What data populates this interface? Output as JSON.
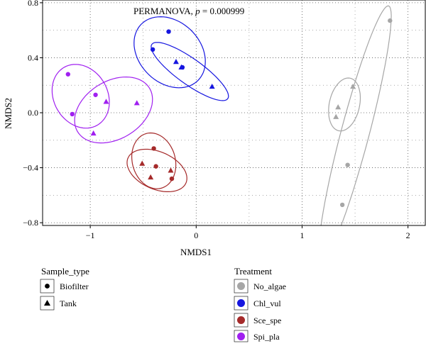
{
  "chart_data": {
    "type": "scatter",
    "title": "",
    "annotation": {
      "prefix": "PERMANOVA, ",
      "p_symbol": "p",
      "value_text": " = 0.000999"
    },
    "xlabel": "NMDS1",
    "ylabel": "NMDS2",
    "xlim": [
      -1.45,
      2.17
    ],
    "ylim": [
      -0.82,
      0.82
    ],
    "x_ticks": [
      -1,
      0,
      1,
      2
    ],
    "y_ticks": [
      -0.8,
      -0.4,
      0.0,
      0.4,
      0.8
    ],
    "x_tick_labels": [
      "−1",
      "0",
      "1",
      "2"
    ],
    "y_tick_labels": [
      "−0.8",
      "−0.4",
      "0.0",
      "0.4",
      "0.8"
    ],
    "grid": true,
    "shape_legend": {
      "title": "Sample_type",
      "items": [
        {
          "label": "Biofilter",
          "shape": "circle"
        },
        {
          "label": "Tank",
          "shape": "triangle"
        }
      ]
    },
    "color_legend": {
      "title": "Treatment",
      "items": [
        {
          "label": "No_algae",
          "color": "#a6a6a6"
        },
        {
          "label": "Chl_vul",
          "color": "#1616e0"
        },
        {
          "label": "Sce_spe",
          "color": "#a52a2a"
        },
        {
          "label": "Spi_pla",
          "color": "#a020f0"
        }
      ]
    },
    "series": [
      {
        "name": "No_algae",
        "color": "#a6a6a6",
        "points": [
          {
            "x": 1.83,
            "y": 0.67,
            "shape": "circle"
          },
          {
            "x": 1.43,
            "y": -0.38,
            "shape": "circle"
          },
          {
            "x": 1.38,
            "y": -0.67,
            "shape": "circle"
          },
          {
            "x": 1.48,
            "y": 0.19,
            "shape": "triangle"
          },
          {
            "x": 1.34,
            "y": 0.04,
            "shape": "triangle"
          },
          {
            "x": 1.32,
            "y": -0.03,
            "shape": "triangle"
          }
        ],
        "ellipses": [
          {
            "cx": 1.5,
            "cy": -0.15,
            "rx": 0.98,
            "ry": 0.13,
            "angle": 71
          },
          {
            "cx": 1.4,
            "cy": 0.06,
            "rx": 0.2,
            "ry": 0.14,
            "angle": 68
          }
        ]
      },
      {
        "name": "Chl_vul",
        "color": "#1616e0",
        "points": [
          {
            "x": -0.26,
            "y": 0.59,
            "shape": "circle"
          },
          {
            "x": -0.41,
            "y": 0.46,
            "shape": "circle"
          },
          {
            "x": -0.13,
            "y": 0.33,
            "shape": "circle"
          },
          {
            "x": -0.19,
            "y": 0.37,
            "shape": "triangle"
          },
          {
            "x": -0.14,
            "y": 0.33,
            "shape": "triangle"
          },
          {
            "x": 0.15,
            "y": 0.19,
            "shape": "triangle"
          }
        ],
        "ellipses": [
          {
            "cx": -0.25,
            "cy": 0.44,
            "rx": 0.35,
            "ry": 0.24,
            "angle": -22
          },
          {
            "cx": -0.06,
            "cy": 0.3,
            "rx": 0.41,
            "ry": 0.1,
            "angle": -28
          }
        ]
      },
      {
        "name": "Sce_spe",
        "color": "#a52a2a",
        "points": [
          {
            "x": -0.4,
            "y": -0.26,
            "shape": "circle"
          },
          {
            "x": -0.38,
            "y": -0.39,
            "shape": "circle"
          },
          {
            "x": -0.23,
            "y": -0.48,
            "shape": "circle"
          },
          {
            "x": -0.51,
            "y": -0.37,
            "shape": "triangle"
          },
          {
            "x": -0.24,
            "y": -0.42,
            "shape": "triangle"
          },
          {
            "x": -0.43,
            "y": -0.47,
            "shape": "triangle"
          }
        ],
        "ellipses": [
          {
            "cx": -0.4,
            "cy": -0.35,
            "rx": 0.22,
            "ry": 0.19,
            "angle": -40
          },
          {
            "cx": -0.37,
            "cy": -0.42,
            "rx": 0.29,
            "ry": 0.14,
            "angle": -15
          }
        ]
      },
      {
        "name": "Spi_pla",
        "color": "#a020f0",
        "points": [
          {
            "x": -1.21,
            "y": 0.28,
            "shape": "circle"
          },
          {
            "x": -0.95,
            "y": 0.13,
            "shape": "circle"
          },
          {
            "x": -1.17,
            "y": -0.01,
            "shape": "circle"
          },
          {
            "x": -0.85,
            "y": 0.08,
            "shape": "triangle"
          },
          {
            "x": -0.56,
            "y": 0.07,
            "shape": "triangle"
          },
          {
            "x": -0.97,
            "y": -0.15,
            "shape": "triangle"
          }
        ],
        "ellipses": [
          {
            "cx": -1.09,
            "cy": 0.12,
            "rx": 0.28,
            "ry": 0.22,
            "angle": -25
          },
          {
            "cx": -0.78,
            "cy": 0.02,
            "rx": 0.38,
            "ry": 0.22,
            "angle": 18
          }
        ]
      }
    ]
  }
}
